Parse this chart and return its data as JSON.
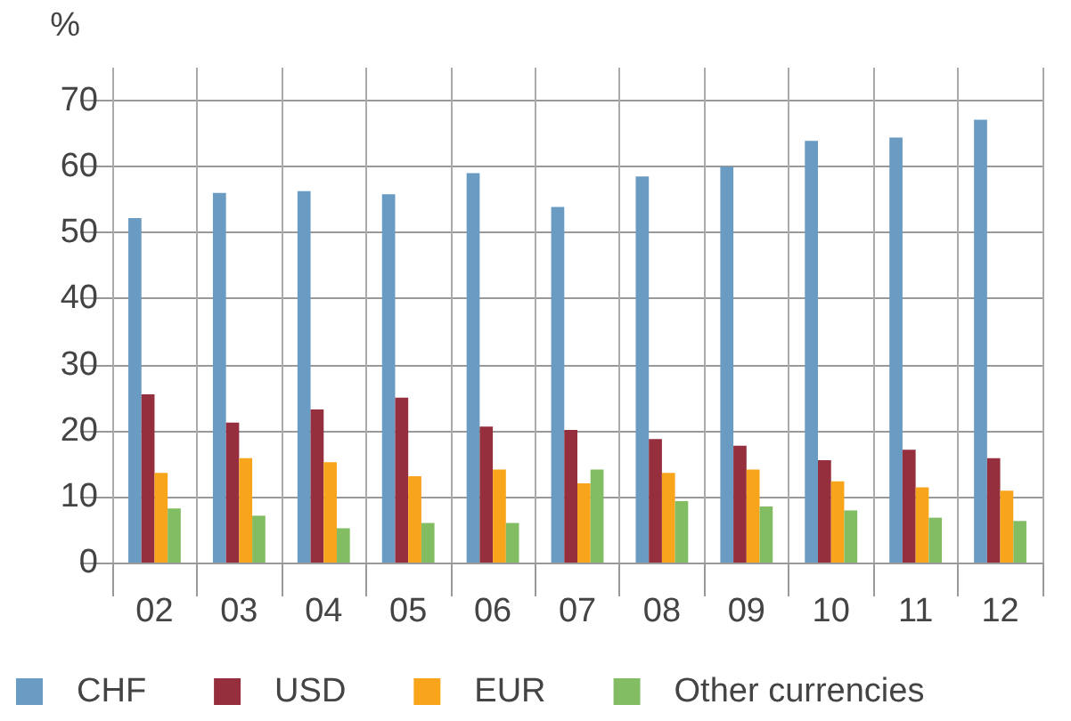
{
  "chart_data": {
    "type": "bar",
    "ylabel": "%",
    "categories": [
      "02",
      "03",
      "04",
      "05",
      "06",
      "07",
      "08",
      "09",
      "10",
      "11",
      "12"
    ],
    "series": [
      {
        "name": "CHF",
        "color": "#6a9bc3",
        "values": [
          52.2,
          56.0,
          56.3,
          55.8,
          59.0,
          53.9,
          58.5,
          60.0,
          63.9,
          64.4,
          67.1
        ]
      },
      {
        "name": "USD",
        "color": "#952e3d",
        "values": [
          25.5,
          21.2,
          23.2,
          25.0,
          20.6,
          20.1,
          18.7,
          17.7,
          15.5,
          17.1,
          15.8
        ]
      },
      {
        "name": "EUR",
        "color": "#f8a51b",
        "values": [
          13.6,
          15.8,
          15.2,
          13.1,
          14.1,
          12.0,
          13.6,
          14.1,
          12.3,
          11.4,
          10.9
        ]
      },
      {
        "name": "Other currencies",
        "color": "#83bd63",
        "values": [
          8.2,
          7.1,
          5.2,
          6.0,
          6.0,
          14.1,
          9.3,
          8.5,
          7.9,
          6.8,
          6.3
        ]
      }
    ],
    "ylim": [
      0,
      75
    ],
    "yticks": [
      0,
      10,
      20,
      30,
      40,
      50,
      60,
      70
    ],
    "grid": true,
    "legend": "bottom left"
  }
}
